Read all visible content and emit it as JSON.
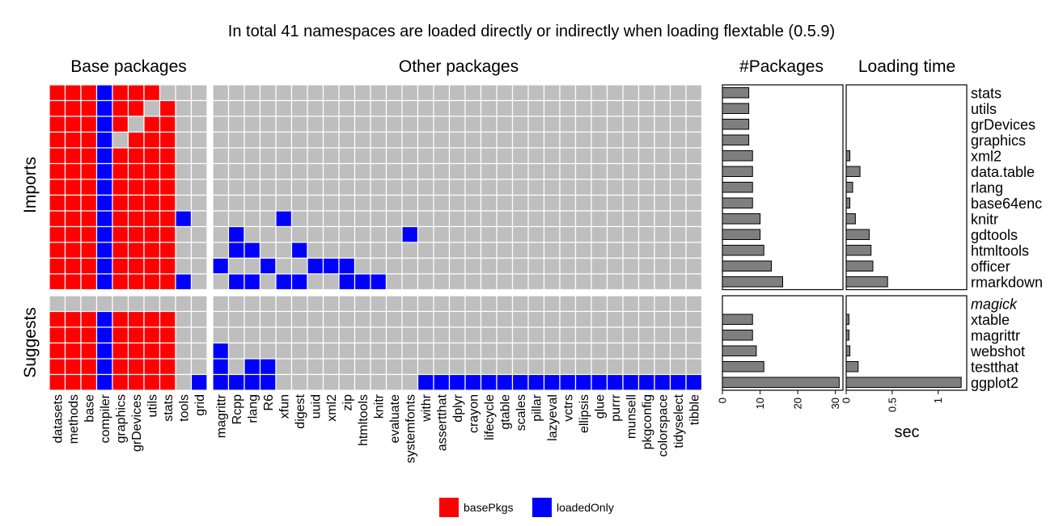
{
  "chart_data": {
    "type": "heatmap",
    "title": "In total 41 namespaces are loaded directly or indirectly when loading flextable (0.5.9)",
    "panels": {
      "base_label": "Base packages",
      "other_label": "Other packages",
      "count_label": "#Packages",
      "time_label": "Loading time"
    },
    "row_groups": {
      "imports": "Imports",
      "suggests": "Suggests"
    },
    "rows": {
      "imports": [
        "stats",
        "utils",
        "grDevices",
        "graphics",
        "xml2",
        "data.table",
        "rlang",
        "base64enc",
        "knitr",
        "gdtools",
        "htmltools",
        "officer",
        "rmarkdown"
      ],
      "suggests": [
        "magick",
        "xtable",
        "magrittr",
        "webshot",
        "testthat",
        "ggplot2"
      ]
    },
    "muted_rows": [
      "magick"
    ],
    "base_columns": [
      "datasets",
      "methods",
      "base",
      "compiler",
      "graphics",
      "grDevices",
      "utils",
      "stats",
      "tools",
      "grid"
    ],
    "other_columns": [
      "magrittr",
      "Rcpp",
      "rlang",
      "R6",
      "xfun",
      "digest",
      "uuid",
      "xml2",
      "zip",
      "htmltools",
      "knitr",
      "evaluate",
      "systemfonts",
      "withr",
      "assertthat",
      "dplyr",
      "crayon",
      "lifecycle",
      "gtable",
      "scales",
      "pillar",
      "lazyeval",
      "vctrs",
      "ellipsis",
      "glue",
      "purrr",
      "munsell",
      "pkgconfig",
      "colorspace",
      "tidyselect",
      "tibble"
    ],
    "matrix_base": [
      "RRRBRRR...",
      "RRRBRR.R..",
      "RRRBR.RR..",
      "RRRB.RRR..",
      "RRRBRRRR..",
      "RRRBRRRR..",
      "RRRBRRRR..",
      "RRRBRRRR..",
      "RRRBRRRRB.",
      "RRRBRRRR..",
      "RRRBRRRR..",
      "RRRBRRRR..",
      "RRRBRRRRB.",
      "..........",
      "RRRBRRRR..",
      "RRRBRRRR..",
      "RRRBRRRR..",
      "RRRBRRRR..",
      "RRRBRRRR.B"
    ],
    "matrix_other": [
      "...............................",
      "...............................",
      "...............................",
      "...............................",
      "...............................",
      "...............................",
      "...............................",
      "...............................",
      "....B..........................",
      ".B..........B..................",
      ".BB..B.........................",
      "B..B..BBB......................",
      ".BB.BB..BBB....................",
      "...............................",
      "...............................",
      "...............................",
      "B..............................",
      "B.BB...........................",
      "BBBB.........BBBBBBBBBBBBBBBBBB"
    ],
    "colors": {
      "R": "#ff0000",
      "B": "#0000ff",
      "empty": "#bebebe",
      "bar": "#7f7f7f"
    },
    "legend": [
      {
        "key": "R",
        "label": "basePkgs"
      },
      {
        "key": "B",
        "label": "loadedOnly"
      }
    ],
    "count_values": {
      "imports": [
        7,
        7,
        7,
        7,
        8,
        8,
        8,
        8,
        10,
        10,
        11,
        13,
        16
      ],
      "suggests": [
        0,
        8,
        8,
        9,
        11,
        31
      ]
    },
    "count_ticks": [
      0,
      10,
      20,
      30
    ],
    "count_xlim": [
      0,
      32
    ],
    "time_values": {
      "imports": [
        0,
        0,
        0,
        0,
        0.04,
        0.15,
        0.07,
        0.04,
        0.1,
        0.25,
        0.27,
        0.29,
        0.45
      ],
      "suggests": [
        0,
        0.03,
        0.03,
        0.04,
        0.13,
        1.25
      ]
    },
    "time_ticks": [
      0,
      0.5,
      1
    ],
    "time_tick_labels": [
      "0",
      "0.5",
      "1"
    ],
    "time_xlim": [
      0,
      1.31
    ],
    "time_xlabel": "sec"
  }
}
